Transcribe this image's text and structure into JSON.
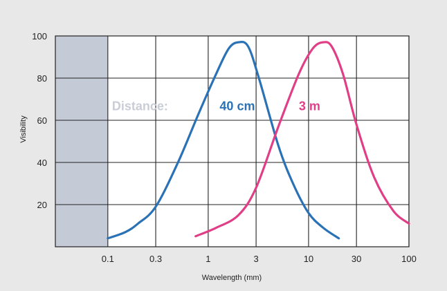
{
  "chart_data": {
    "type": "line",
    "xscale": "log",
    "xlabel": "Wavelength (mm)",
    "ylabel": "Visibility",
    "xlim": [
      0.03,
      100
    ],
    "ylim": [
      0,
      100
    ],
    "grid": true,
    "x_ticks": [
      {
        "value": 0.1,
        "label": "0.1"
      },
      {
        "value": 0.3,
        "label": "0.3"
      },
      {
        "value": 1,
        "label": "1"
      },
      {
        "value": 3,
        "label": "3"
      },
      {
        "value": 10,
        "label": "10"
      },
      {
        "value": 30,
        "label": "30"
      },
      {
        "value": 100,
        "label": "100"
      }
    ],
    "y_ticks": [
      {
        "value": 20,
        "label": "20"
      },
      {
        "value": 40,
        "label": "40"
      },
      {
        "value": 60,
        "label": "60"
      },
      {
        "value": 80,
        "label": "80"
      },
      {
        "value": 100,
        "label": "100"
      }
    ],
    "shaded_region": {
      "x_range": [
        0.03,
        0.1
      ],
      "color": "#c4cad6"
    },
    "annotation": {
      "text": "Distance:",
      "color": "#c9ced6",
      "x": 0.11,
      "y": 67
    },
    "series": [
      {
        "name": "40 cm",
        "color": "#2a72b5",
        "label_position": {
          "x": 1.3,
          "y": 67
        },
        "points": [
          {
            "x": 0.1,
            "y": 4
          },
          {
            "x": 0.15,
            "y": 7
          },
          {
            "x": 0.2,
            "y": 11
          },
          {
            "x": 0.3,
            "y": 19
          },
          {
            "x": 0.5,
            "y": 40
          },
          {
            "x": 0.8,
            "y": 63
          },
          {
            "x": 1.2,
            "y": 82
          },
          {
            "x": 1.6,
            "y": 94
          },
          {
            "x": 2.0,
            "y": 97
          },
          {
            "x": 2.5,
            "y": 95
          },
          {
            "x": 3.2,
            "y": 80
          },
          {
            "x": 5,
            "y": 48
          },
          {
            "x": 7,
            "y": 30
          },
          {
            "x": 10,
            "y": 16
          },
          {
            "x": 14,
            "y": 9
          },
          {
            "x": 20,
            "y": 4
          }
        ]
      },
      {
        "name": "3 m",
        "color": "#e03e86",
        "label_position": {
          "x": 8,
          "y": 67
        },
        "points": [
          {
            "x": 0.75,
            "y": 5
          },
          {
            "x": 1.2,
            "y": 9
          },
          {
            "x": 2,
            "y": 15
          },
          {
            "x": 3,
            "y": 28
          },
          {
            "x": 5,
            "y": 57
          },
          {
            "x": 8,
            "y": 82
          },
          {
            "x": 11,
            "y": 94
          },
          {
            "x": 14,
            "y": 97
          },
          {
            "x": 17,
            "y": 95
          },
          {
            "x": 22,
            "y": 82
          },
          {
            "x": 30,
            "y": 58
          },
          {
            "x": 45,
            "y": 33
          },
          {
            "x": 70,
            "y": 17
          },
          {
            "x": 100,
            "y": 11
          }
        ]
      }
    ]
  }
}
